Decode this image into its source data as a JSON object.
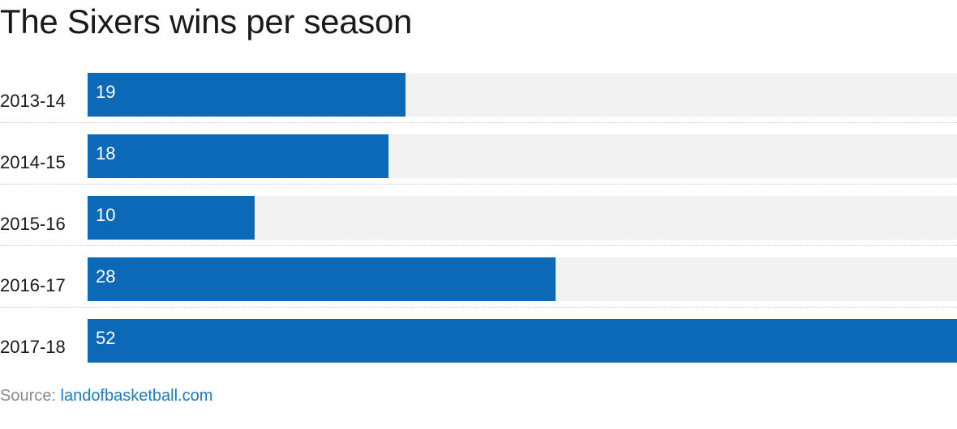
{
  "chart_data": {
    "type": "bar",
    "orientation": "horizontal",
    "title": "The Sixers wins per season",
    "categories": [
      "2013-14",
      "2014-15",
      "2015-16",
      "2016-17",
      "2017-18"
    ],
    "values": [
      19,
      18,
      10,
      28,
      52
    ],
    "xlim": [
      0,
      52
    ],
    "grid": false,
    "legend": "none",
    "colors": {
      "bar": "#0b69b8",
      "track": "#f2f2f2",
      "bar_label": "#ffffff"
    }
  },
  "source": {
    "prefix": "Source:",
    "link_text": "landofbasketball.com"
  }
}
